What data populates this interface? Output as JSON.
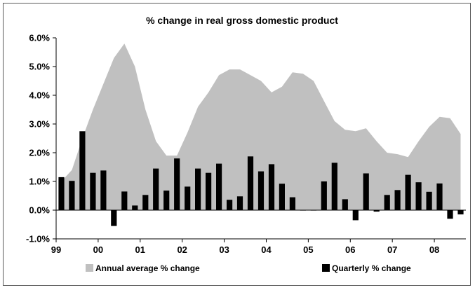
{
  "chart_data": {
    "type": "bar",
    "title": "% change in real gross domestic product",
    "xlabel": "",
    "ylabel": "",
    "ylim": [
      -1.0,
      6.0
    ],
    "y_ticks": [
      "-1.0%",
      "0.0%",
      "1.0%",
      "2.0%",
      "3.0%",
      "4.0%",
      "5.0%",
      "6.0%"
    ],
    "x_ticks": [
      "99",
      "00",
      "01",
      "02",
      "03",
      "04",
      "05",
      "06",
      "07",
      "08"
    ],
    "grid": false,
    "legend_position": "bottom",
    "colors": {
      "area": "#c0c0c0",
      "bars": "#000000",
      "axis": "#000000"
    },
    "series": [
      {
        "name": "Annual average % change",
        "type": "area",
        "values": [
          1.0,
          1.4,
          2.5,
          3.5,
          4.4,
          5.3,
          5.8,
          5.0,
          3.5,
          2.4,
          1.9,
          1.9,
          2.7,
          3.6,
          4.1,
          4.7,
          4.9,
          4.9,
          4.7,
          4.5,
          4.1,
          4.3,
          4.8,
          4.75,
          4.5,
          3.8,
          3.1,
          2.8,
          2.75,
          2.85,
          2.4,
          2.0,
          1.95,
          1.85,
          2.4,
          2.9,
          3.25,
          3.2,
          2.65
        ]
      },
      {
        "name": "Quarterly % change",
        "type": "bar",
        "values": [
          1.15,
          1.02,
          2.75,
          1.3,
          1.38,
          -0.55,
          0.65,
          0.16,
          0.53,
          1.45,
          0.68,
          1.8,
          0.82,
          1.45,
          1.3,
          1.62,
          0.36,
          0.48,
          1.87,
          1.35,
          1.6,
          0.92,
          0.45,
          0.0,
          0.0,
          1.0,
          1.65,
          0.38,
          -0.35,
          1.28,
          -0.05,
          0.53,
          0.7,
          1.23,
          0.97,
          0.64,
          0.93,
          -0.3,
          -0.15
        ]
      }
    ]
  }
}
